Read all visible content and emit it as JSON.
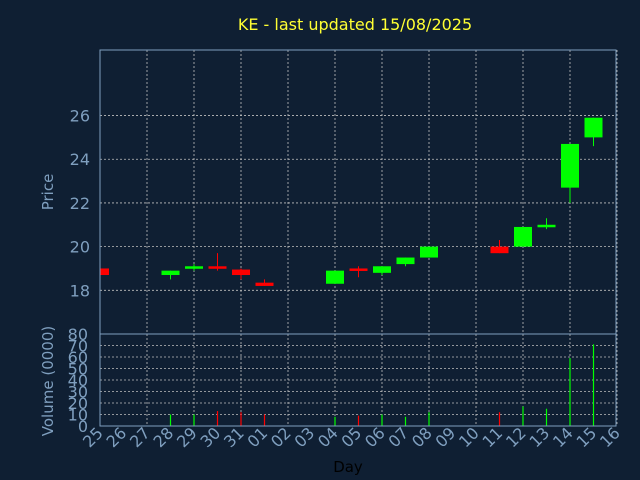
{
  "colors": {
    "background": "#0f1f33",
    "title": "#ffff33",
    "axis_text": "#7f9fbf",
    "frame": "#7f9fbf",
    "grid": "#c0c0c0",
    "up": "#00ff00",
    "down": "#ff0000"
  },
  "chart_data": {
    "type": "candlestick",
    "title": "KE - last updated 15/08/2025",
    "xlabel": "Day",
    "grid": true,
    "categories": [
      "25",
      "26",
      "27",
      "28",
      "29",
      "30",
      "31",
      "01",
      "02",
      "03",
      "04",
      "05",
      "06",
      "07",
      "08",
      "09",
      "10",
      "11",
      "12",
      "13",
      "14",
      "15",
      "16"
    ],
    "price_panel": {
      "ylabel": "Price",
      "ylim": [
        16.0,
        29.0
      ],
      "yticks": [
        18,
        20,
        22,
        24,
        26
      ],
      "candles": [
        {
          "x": "25",
          "open": 19.0,
          "high": 19.0,
          "low": 18.6,
          "close": 18.7
        },
        {
          "x": "28",
          "open": 18.7,
          "high": 18.9,
          "low": 18.5,
          "close": 18.9
        },
        {
          "x": "29",
          "open": 19.0,
          "high": 19.2,
          "low": 18.9,
          "close": 19.1
        },
        {
          "x": "30",
          "open": 19.1,
          "high": 19.7,
          "low": 18.9,
          "close": 19.05
        },
        {
          "x": "31",
          "open": 18.95,
          "high": 19.0,
          "low": 18.5,
          "close": 18.7
        },
        {
          "x": "01",
          "open": 18.35,
          "high": 18.5,
          "low": 18.2,
          "close": 18.2
        },
        {
          "x": "04",
          "open": 18.3,
          "high": 18.9,
          "low": 18.3,
          "close": 18.9
        },
        {
          "x": "05",
          "open": 19.0,
          "high": 19.1,
          "low": 18.6,
          "close": 18.9
        },
        {
          "x": "06",
          "open": 18.8,
          "high": 19.1,
          "low": 18.7,
          "close": 19.1
        },
        {
          "x": "07",
          "open": 19.2,
          "high": 19.5,
          "low": 19.1,
          "close": 19.5
        },
        {
          "x": "08",
          "open": 19.5,
          "high": 20.0,
          "low": 19.5,
          "close": 20.0
        },
        {
          "x": "11",
          "open": 20.0,
          "high": 20.3,
          "low": 19.7,
          "close": 19.7
        },
        {
          "x": "12",
          "open": 20.0,
          "high": 20.9,
          "low": 20.0,
          "close": 20.9
        },
        {
          "x": "13",
          "open": 20.9,
          "high": 21.3,
          "low": 20.8,
          "close": 21.0
        },
        {
          "x": "14",
          "open": 22.7,
          "high": 24.7,
          "low": 22.0,
          "close": 24.7
        },
        {
          "x": "15",
          "open": 25.0,
          "high": 25.9,
          "low": 24.6,
          "close": 25.9
        }
      ]
    },
    "volume_panel": {
      "ylabel": "Volume (0000)",
      "ylim": [
        0,
        80
      ],
      "yticks": [
        0,
        10,
        20,
        30,
        40,
        50,
        60,
        70,
        80
      ],
      "bars": [
        {
          "x": "28",
          "value": 10,
          "direction": "up"
        },
        {
          "x": "29",
          "value": 10,
          "direction": "up"
        },
        {
          "x": "30",
          "value": 13,
          "direction": "down"
        },
        {
          "x": "31",
          "value": 12,
          "direction": "down"
        },
        {
          "x": "01",
          "value": 10,
          "direction": "down"
        },
        {
          "x": "04",
          "value": 8,
          "direction": "up"
        },
        {
          "x": "05",
          "value": 9,
          "direction": "down"
        },
        {
          "x": "06",
          "value": 10,
          "direction": "up"
        },
        {
          "x": "07",
          "value": 8,
          "direction": "up"
        },
        {
          "x": "08",
          "value": 12,
          "direction": "up"
        },
        {
          "x": "11",
          "value": 12,
          "direction": "down"
        },
        {
          "x": "12",
          "value": 17,
          "direction": "up"
        },
        {
          "x": "13",
          "value": 15,
          "direction": "up"
        },
        {
          "x": "14",
          "value": 59,
          "direction": "up"
        },
        {
          "x": "15",
          "value": 71,
          "direction": "up"
        }
      ]
    }
  }
}
